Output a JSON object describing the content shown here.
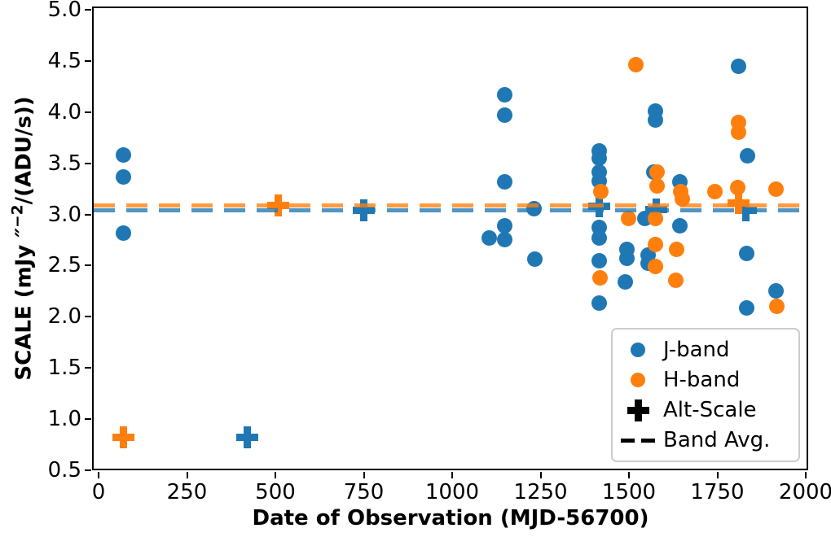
{
  "figure": {
    "xlabel": "Date of Observation (MJD-56700)",
    "ylabel_text": "SCALE (mJy ″⁻²/(ADU/s))",
    "ylabel_prefix": "SCALE (mJy ",
    "ylabel_primes": "″",
    "ylabel_sup": "−2",
    "ylabel_suffix": "/(ADU/s))",
    "xtick_labels": [
      "0",
      "250",
      "500",
      "750",
      "1000",
      "1250",
      "1500",
      "1750",
      "2000"
    ],
    "ytick_labels": [
      "0.5",
      "1.0",
      "1.5",
      "2.0",
      "2.5",
      "3.0",
      "3.5",
      "4.0",
      "4.5",
      "5.0"
    ]
  },
  "legend": {
    "items": [
      {
        "label": "J-band",
        "marker": "circle",
        "color": "#1f77b4"
      },
      {
        "label": "H-band",
        "marker": "circle",
        "color": "#ff7f0e"
      },
      {
        "label": "Alt-Scale",
        "marker": "plus",
        "color": "#000000"
      },
      {
        "label": "Band Avg.",
        "marker": "dashes",
        "color": "#000000"
      }
    ]
  },
  "chart_data": {
    "type": "scatter",
    "title": "",
    "xlabel": "Date of Observation (MJD-56700)",
    "ylabel": "SCALE (mJy ″⁻²/(ADU/s))",
    "xlim": [
      -20,
      2010
    ],
    "ylim": [
      0.5,
      5.03
    ],
    "xticks": [
      0,
      250,
      500,
      750,
      1000,
      1250,
      1500,
      1750,
      2000
    ],
    "yticks": [
      0.5,
      1.0,
      1.5,
      2.0,
      2.5,
      3.0,
      3.5,
      4.0,
      4.5,
      5.0
    ],
    "grid": false,
    "legend_position": "lower right",
    "colors": {
      "J_band": "#1f77b4",
      "H_band": "#ff7f0e"
    },
    "series": [
      {
        "name": "J-band",
        "marker": "circle",
        "color": "#1f77b4",
        "points": [
          [
            70,
            3.58
          ],
          [
            70,
            3.37
          ],
          [
            70,
            2.82
          ],
          [
            1104,
            2.77
          ],
          [
            1148,
            4.17
          ],
          [
            1148,
            3.97
          ],
          [
            1148,
            3.32
          ],
          [
            1148,
            2.89
          ],
          [
            1148,
            2.75
          ],
          [
            1232,
            3.06
          ],
          [
            1235,
            2.56
          ],
          [
            1415,
            3.62
          ],
          [
            1415,
            3.55
          ],
          [
            1415,
            3.41
          ],
          [
            1415,
            3.33
          ],
          [
            1415,
            2.87
          ],
          [
            1415,
            2.77
          ],
          [
            1415,
            2.55
          ],
          [
            1416,
            2.13
          ],
          [
            1490,
            2.34
          ],
          [
            1495,
            2.66
          ],
          [
            1495,
            2.57
          ],
          [
            1544,
            2.96
          ],
          [
            1553,
            2.6
          ],
          [
            1553,
            2.52
          ],
          [
            1576,
            4.01
          ],
          [
            1576,
            3.92
          ],
          [
            1570,
            3.41
          ],
          [
            1645,
            3.32
          ],
          [
            1645,
            2.89
          ],
          [
            1809,
            4.45
          ],
          [
            1836,
            3.57
          ],
          [
            1834,
            2.62
          ],
          [
            1834,
            2.09
          ],
          [
            1915,
            2.25
          ]
        ]
      },
      {
        "name": "Alt-Scale-J",
        "marker": "plus",
        "color": "#1f77b4",
        "points": [
          [
            420,
            0.82
          ],
          [
            751,
            3.04
          ],
          [
            1415,
            3.08
          ],
          [
            1578,
            3.05
          ],
          [
            1830,
            3.04
          ]
        ]
      },
      {
        "name": "H-band",
        "marker": "circle",
        "color": "#ff7f0e",
        "points": [
          [
            1420,
            3.22
          ],
          [
            1419,
            2.38
          ],
          [
            1498,
            2.96
          ],
          [
            1519,
            4.46
          ],
          [
            1580,
            3.41
          ],
          [
            1580,
            3.28
          ],
          [
            1574,
            2.96
          ],
          [
            1576,
            2.71
          ],
          [
            1576,
            2.49
          ],
          [
            1646,
            3.22
          ],
          [
            1652,
            3.15
          ],
          [
            1635,
            2.66
          ],
          [
            1633,
            2.36
          ],
          [
            1742,
            3.22
          ],
          [
            1809,
            3.9
          ],
          [
            1809,
            3.8
          ],
          [
            1807,
            3.26
          ],
          [
            1917,
            3.25
          ],
          [
            1919,
            2.1
          ]
        ]
      },
      {
        "name": "Alt-Scale-H",
        "marker": "plus",
        "color": "#ff7f0e",
        "points": [
          [
            71,
            0.82
          ],
          [
            507,
            3.09
          ],
          [
            1811,
            3.11
          ]
        ]
      },
      {
        "name": "Band-Avg-H",
        "marker": "hline",
        "color": "#ff7f0e",
        "y": 3.09
      },
      {
        "name": "Band-Avg-J",
        "marker": "hline",
        "color": "#1f77b4",
        "y": 3.04
      }
    ]
  }
}
